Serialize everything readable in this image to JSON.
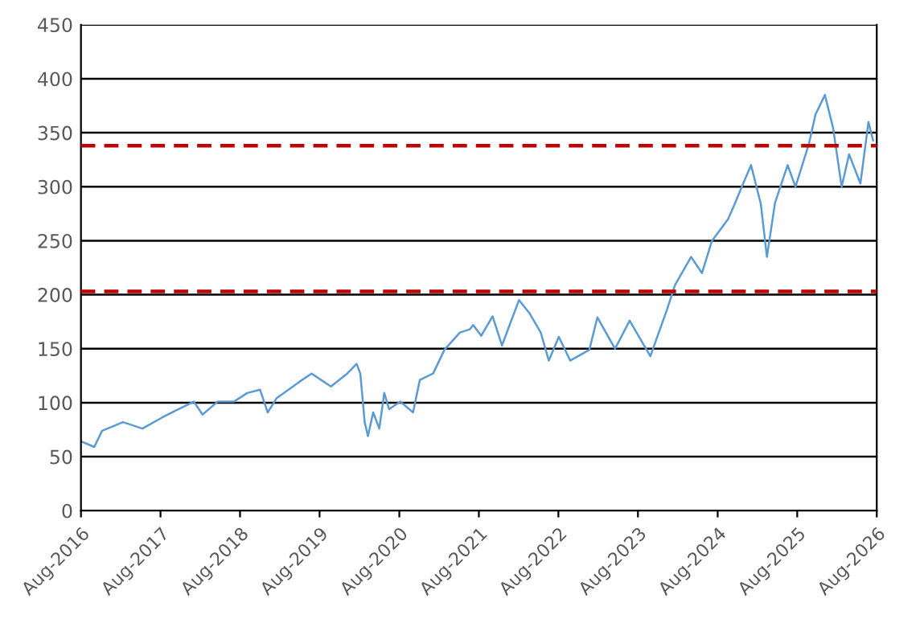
{
  "chart_data": {
    "type": "line",
    "x": [
      "2016-08-05",
      "2016-10-01",
      "2016-11-06",
      "2017-02-10",
      "2017-05-10",
      "2017-08-06",
      "2017-10-03",
      "2018-01-01",
      "2018-02-10",
      "2018-04-20",
      "2018-07-04",
      "2018-09-03",
      "2018-11-01",
      "2018-12-06",
      "2019-01-15",
      "2019-04-28",
      "2019-06-25",
      "2019-09-22",
      "2019-12-06",
      "2020-01-18",
      "2020-02-04",
      "2020-02-24",
      "2020-03-10",
      "2020-04-03",
      "2020-05-01",
      "2020-05-24",
      "2020-06-15",
      "2020-08-06",
      "2020-10-03",
      "2020-11-03",
      "2021-01-03",
      "2021-02-24",
      "2021-05-06",
      "2021-06-21",
      "2021-07-06",
      "2021-08-12",
      "2021-10-03",
      "2021-11-15",
      "2022-02-01",
      "2022-03-21",
      "2022-05-12",
      "2022-06-18",
      "2022-08-03",
      "2022-09-24",
      "2022-12-21",
      "2023-01-27",
      "2023-04-18",
      "2023-06-24",
      "2023-09-27",
      "2023-12-12",
      "2024-01-18",
      "2024-04-01",
      "2024-05-21",
      "2024-07-06",
      "2024-09-18",
      "2024-10-18",
      "2024-11-24",
      "2025-01-01",
      "2025-02-15",
      "2025-03-15",
      "2025-04-21",
      "2025-06-18",
      "2025-07-24",
      "2025-09-24",
      "2025-10-24",
      "2025-12-06",
      "2026-01-12",
      "2026-02-21",
      "2026-03-27",
      "2026-05-18",
      "2026-06-24",
      "2026-07-15"
    ],
    "series": [
      {
        "color": "#5b9bd5",
        "values": [
          64,
          59,
          74,
          82,
          76,
          86,
          92,
          101,
          89,
          101,
          101,
          109,
          112,
          91,
          104,
          119,
          127,
          115,
          127,
          136,
          127,
          82,
          69,
          91,
          76,
          109,
          94,
          101,
          91,
          121,
          127,
          149,
          165,
          168,
          172,
          162,
          180,
          153,
          195,
          183,
          165,
          139,
          161,
          139,
          149,
          179,
          150,
          176,
          143,
          186,
          209,
          235,
          220,
          250,
          270,
          284,
          302,
          320,
          284,
          235,
          285,
          320,
          300,
          340,
          367,
          385,
          355,
          300,
          330,
          303,
          360,
          343
        ]
      }
    ],
    "xlim": [
      "2016-08-01",
      "2026-08-01"
    ],
    "xticks": [
      {
        "value": "2016-08-01",
        "label": "Aug-2016"
      },
      {
        "value": "2017-08-01",
        "label": "Aug-2017"
      },
      {
        "value": "2018-08-01",
        "label": "Aug-2018"
      },
      {
        "value": "2019-08-01",
        "label": "Aug-2019"
      },
      {
        "value": "2020-08-01",
        "label": "Aug-2020"
      },
      {
        "value": "2021-08-01",
        "label": "Aug-2021"
      },
      {
        "value": "2022-08-01",
        "label": "Aug-2022"
      },
      {
        "value": "2023-08-01",
        "label": "Aug-2023"
      },
      {
        "value": "2024-08-01",
        "label": "Aug-2024"
      },
      {
        "value": "2025-08-01",
        "label": "Aug-2025"
      },
      {
        "value": "2026-08-01",
        "label": "Aug-2026"
      }
    ],
    "ylim": [
      0,
      450
    ],
    "yticks": [
      0,
      50,
      100,
      150,
      200,
      250,
      300,
      350,
      400,
      450
    ],
    "grid": "y",
    "legend": false,
    "ref_lines": [
      {
        "axis": "y",
        "value": 338,
        "color": "#c00000",
        "line_style": "dashed"
      },
      {
        "axis": "y",
        "value": 203,
        "color": "#c00000",
        "line_style": "dashed"
      }
    ]
  }
}
